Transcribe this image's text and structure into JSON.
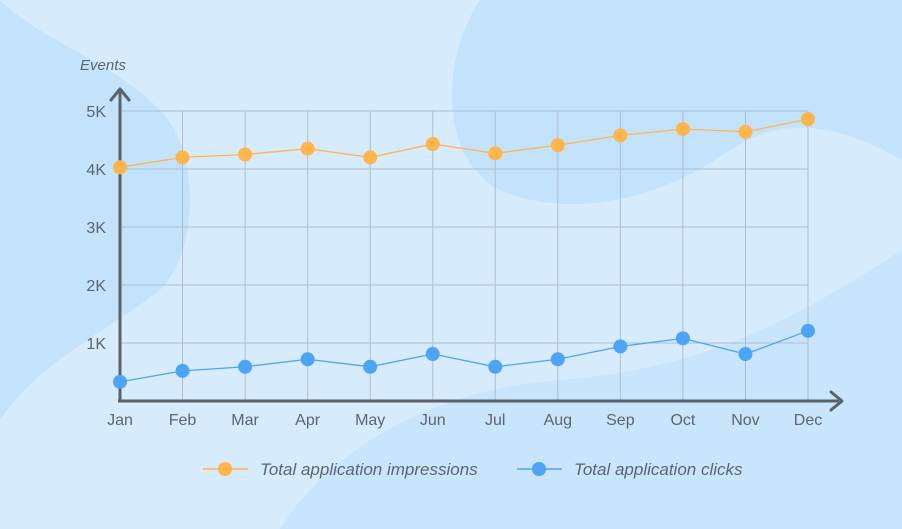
{
  "chart_data": {
    "type": "line",
    "title": "",
    "xlabel": "",
    "ylabel": "Events",
    "categories": [
      "Jan",
      "Feb",
      "Mar",
      "Apr",
      "May",
      "Jun",
      "Jul",
      "Aug",
      "Sep",
      "Oct",
      "Nov",
      "Dec"
    ],
    "y_ticks": [
      "1K",
      "2K",
      "3K",
      "4K",
      "5K"
    ],
    "y_tick_values": [
      1000,
      2000,
      3000,
      4000,
      5000
    ],
    "ylim": [
      0,
      5000
    ],
    "grid": true,
    "legend_position": "bottom",
    "series": [
      {
        "name": "Total application impressions",
        "color": "#ffb54c",
        "values": [
          4030,
          4200,
          4250,
          4350,
          4200,
          4430,
          4270,
          4410,
          4580,
          4690,
          4640,
          4860
        ]
      },
      {
        "name": "Total application clicks",
        "color": "#4da3f5",
        "values": [
          330,
          520,
          590,
          720,
          590,
          810,
          590,
          720,
          940,
          1080,
          810,
          1210
        ]
      }
    ]
  }
}
